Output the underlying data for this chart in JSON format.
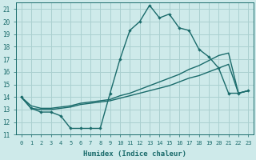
{
  "xlabel": "Humidex (Indice chaleur)",
  "bg_color": "#ceeaea",
  "grid_color": "#aad0d0",
  "line_color": "#1a6b6b",
  "xlim": [
    -0.5,
    23.5
  ],
  "ylim": [
    11,
    21.5
  ],
  "xticks": [
    0,
    1,
    2,
    3,
    4,
    5,
    6,
    7,
    8,
    9,
    10,
    11,
    12,
    13,
    14,
    15,
    16,
    17,
    18,
    19,
    20,
    21,
    22,
    23
  ],
  "yticks": [
    11,
    12,
    13,
    14,
    15,
    16,
    17,
    18,
    19,
    20,
    21
  ],
  "line1_x": [
    0,
    1,
    2,
    3,
    4,
    5,
    6,
    7,
    8,
    9,
    10,
    11,
    12,
    13,
    14,
    15,
    16,
    17,
    18,
    19,
    20,
    21,
    22,
    23
  ],
  "line1_y": [
    14,
    13.1,
    12.8,
    12.8,
    12.5,
    11.5,
    11.5,
    11.5,
    11.5,
    14.3,
    17,
    19.3,
    20,
    21.3,
    20.3,
    20.6,
    19.5,
    19.3,
    17.8,
    17.2,
    16.3,
    14.3,
    14.3,
    14.5
  ],
  "line2_x": [
    0,
    1,
    2,
    3,
    4,
    5,
    6,
    7,
    8,
    9,
    10,
    11,
    12,
    13,
    14,
    15,
    16,
    17,
    18,
    19,
    20,
    21,
    22,
    23
  ],
  "line2_y": [
    14,
    13.3,
    13.1,
    13.1,
    13.2,
    13.3,
    13.5,
    13.6,
    13.7,
    13.8,
    14.1,
    14.3,
    14.6,
    14.9,
    15.2,
    15.5,
    15.8,
    16.2,
    16.5,
    16.9,
    17.3,
    17.5,
    14.3,
    14.5
  ],
  "line3_x": [
    0,
    1,
    2,
    3,
    4,
    5,
    6,
    7,
    8,
    9,
    10,
    11,
    12,
    13,
    14,
    15,
    16,
    17,
    18,
    19,
    20,
    21,
    22,
    23
  ],
  "line3_y": [
    14,
    13.1,
    13.0,
    13.0,
    13.1,
    13.2,
    13.4,
    13.5,
    13.6,
    13.7,
    13.9,
    14.1,
    14.3,
    14.5,
    14.7,
    14.9,
    15.2,
    15.5,
    15.7,
    16.0,
    16.3,
    16.6,
    14.3,
    14.5
  ]
}
